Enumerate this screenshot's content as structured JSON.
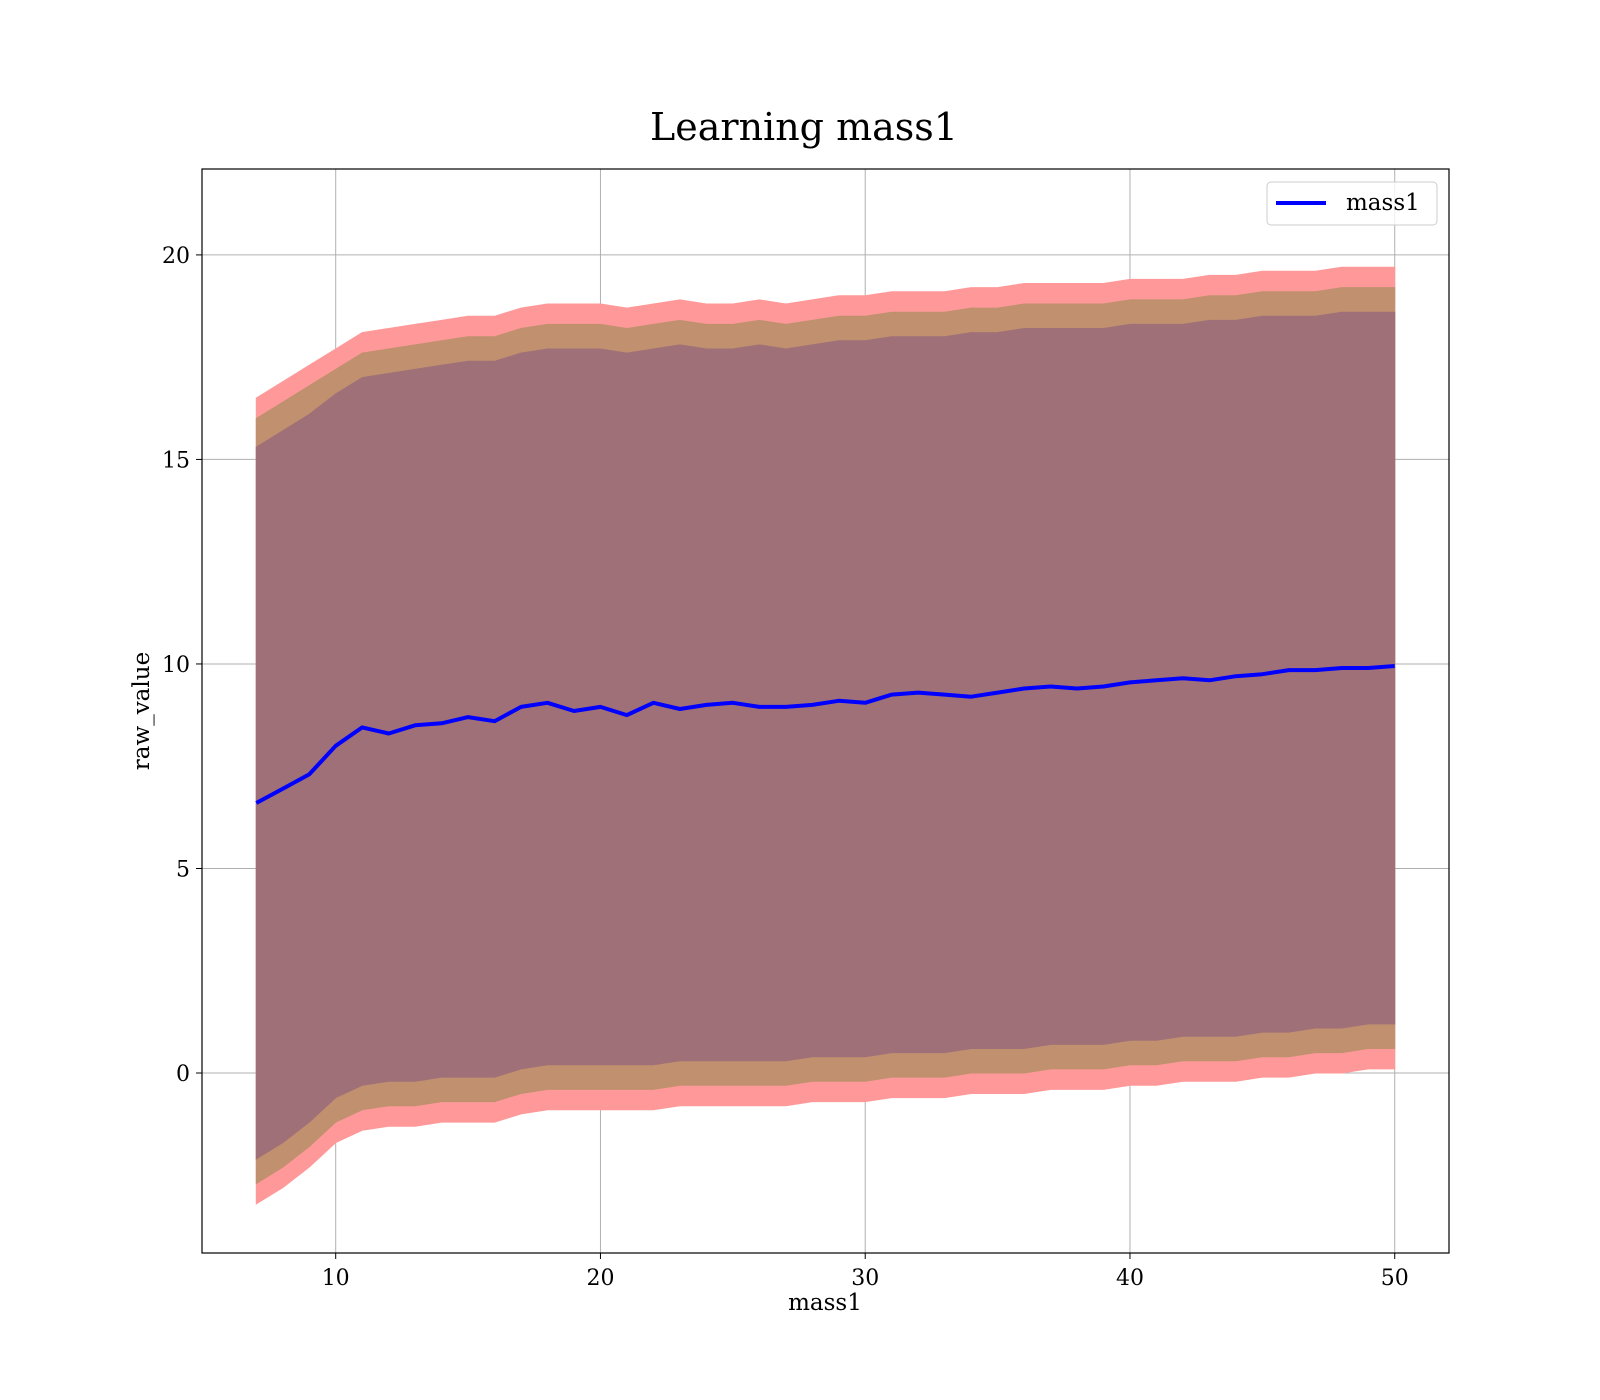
{
  "chart_data": {
    "type": "line",
    "title": "Learning mass1",
    "xlabel": "mass1",
    "ylabel": "raw_value",
    "xlim": [
      4.95,
      52.05
    ],
    "ylim": [
      -4.4,
      22.1
    ],
    "xticks": [
      10,
      20,
      30,
      40,
      50
    ],
    "yticks": [
      0,
      5,
      10,
      15,
      20
    ],
    "grid": true,
    "legend": {
      "position": "top-right",
      "entries": [
        "mass1"
      ]
    },
    "colors": {
      "line": "#0000ff",
      "band_outer": "#ff9999",
      "band_middle": "#c0906f",
      "band_inner": "#a07078",
      "grid": "#b0b0b0"
    },
    "series": [
      {
        "name": "mass1",
        "x": [
          7,
          8,
          9,
          10,
          11,
          12,
          13,
          14,
          15,
          16,
          17,
          18,
          19,
          20,
          21,
          22,
          23,
          24,
          25,
          26,
          27,
          28,
          29,
          30,
          31,
          32,
          33,
          34,
          35,
          36,
          37,
          38,
          39,
          40,
          41,
          42,
          43,
          44,
          45,
          46,
          47,
          48,
          49,
          50
        ],
        "y": [
          6.6,
          6.95,
          7.3,
          8.0,
          8.45,
          8.3,
          8.5,
          8.55,
          8.7,
          8.6,
          8.95,
          9.05,
          8.85,
          8.95,
          8.75,
          9.05,
          8.9,
          9.0,
          9.05,
          8.95,
          8.95,
          9.0,
          9.1,
          9.05,
          9.25,
          9.3,
          9.25,
          9.2,
          9.3,
          9.4,
          9.45,
          9.4,
          9.45,
          9.55,
          9.6,
          9.65,
          9.6,
          9.7,
          9.75,
          9.85,
          9.85,
          9.9,
          9.9,
          9.95
        ]
      }
    ],
    "bands": [
      {
        "level": "outer",
        "upper": [
          16.5,
          16.9,
          17.3,
          17.7,
          18.1,
          18.2,
          18.3,
          18.4,
          18.5,
          18.5,
          18.7,
          18.8,
          18.8,
          18.8,
          18.7,
          18.8,
          18.9,
          18.8,
          18.8,
          18.9,
          18.8,
          18.9,
          19.0,
          19.0,
          19.1,
          19.1,
          19.1,
          19.2,
          19.2,
          19.3,
          19.3,
          19.3,
          19.3,
          19.4,
          19.4,
          19.4,
          19.5,
          19.5,
          19.6,
          19.6,
          19.6,
          19.7,
          19.7,
          19.7
        ],
        "lower": [
          -3.2,
          -2.8,
          -2.3,
          -1.7,
          -1.4,
          -1.3,
          -1.3,
          -1.2,
          -1.2,
          -1.2,
          -1.0,
          -0.9,
          -0.9,
          -0.9,
          -0.9,
          -0.9,
          -0.8,
          -0.8,
          -0.8,
          -0.8,
          -0.8,
          -0.7,
          -0.7,
          -0.7,
          -0.6,
          -0.6,
          -0.6,
          -0.5,
          -0.5,
          -0.5,
          -0.4,
          -0.4,
          -0.4,
          -0.3,
          -0.3,
          -0.2,
          -0.2,
          -0.2,
          -0.1,
          -0.1,
          0.0,
          0.0,
          0.1,
          0.1
        ]
      },
      {
        "level": "middle",
        "upper": [
          16.0,
          16.4,
          16.8,
          17.2,
          17.6,
          17.7,
          17.8,
          17.9,
          18.0,
          18.0,
          18.2,
          18.3,
          18.3,
          18.3,
          18.2,
          18.3,
          18.4,
          18.3,
          18.3,
          18.4,
          18.3,
          18.4,
          18.5,
          18.5,
          18.6,
          18.6,
          18.6,
          18.7,
          18.7,
          18.8,
          18.8,
          18.8,
          18.8,
          18.9,
          18.9,
          18.9,
          19.0,
          19.0,
          19.1,
          19.1,
          19.1,
          19.2,
          19.2,
          19.2
        ],
        "lower": [
          -2.7,
          -2.3,
          -1.8,
          -1.2,
          -0.9,
          -0.8,
          -0.8,
          -0.7,
          -0.7,
          -0.7,
          -0.5,
          -0.4,
          -0.4,
          -0.4,
          -0.4,
          -0.4,
          -0.3,
          -0.3,
          -0.3,
          -0.3,
          -0.3,
          -0.2,
          -0.2,
          -0.2,
          -0.1,
          -0.1,
          -0.1,
          0.0,
          0.0,
          0.0,
          0.1,
          0.1,
          0.1,
          0.2,
          0.2,
          0.3,
          0.3,
          0.3,
          0.4,
          0.4,
          0.5,
          0.5,
          0.6,
          0.6
        ]
      },
      {
        "level": "inner",
        "upper": [
          15.3,
          15.7,
          16.1,
          16.6,
          17.0,
          17.1,
          17.2,
          17.3,
          17.4,
          17.4,
          17.6,
          17.7,
          17.7,
          17.7,
          17.6,
          17.7,
          17.8,
          17.7,
          17.7,
          17.8,
          17.7,
          17.8,
          17.9,
          17.9,
          18.0,
          18.0,
          18.0,
          18.1,
          18.1,
          18.2,
          18.2,
          18.2,
          18.2,
          18.3,
          18.3,
          18.3,
          18.4,
          18.4,
          18.5,
          18.5,
          18.5,
          18.6,
          18.6,
          18.6
        ],
        "lower": [
          -2.1,
          -1.7,
          -1.2,
          -0.6,
          -0.3,
          -0.2,
          -0.2,
          -0.1,
          -0.1,
          -0.1,
          0.1,
          0.2,
          0.2,
          0.2,
          0.2,
          0.2,
          0.3,
          0.3,
          0.3,
          0.3,
          0.3,
          0.4,
          0.4,
          0.4,
          0.5,
          0.5,
          0.5,
          0.6,
          0.6,
          0.6,
          0.7,
          0.7,
          0.7,
          0.8,
          0.8,
          0.9,
          0.9,
          0.9,
          1.0,
          1.0,
          1.1,
          1.1,
          1.2,
          1.2
        ]
      }
    ]
  }
}
